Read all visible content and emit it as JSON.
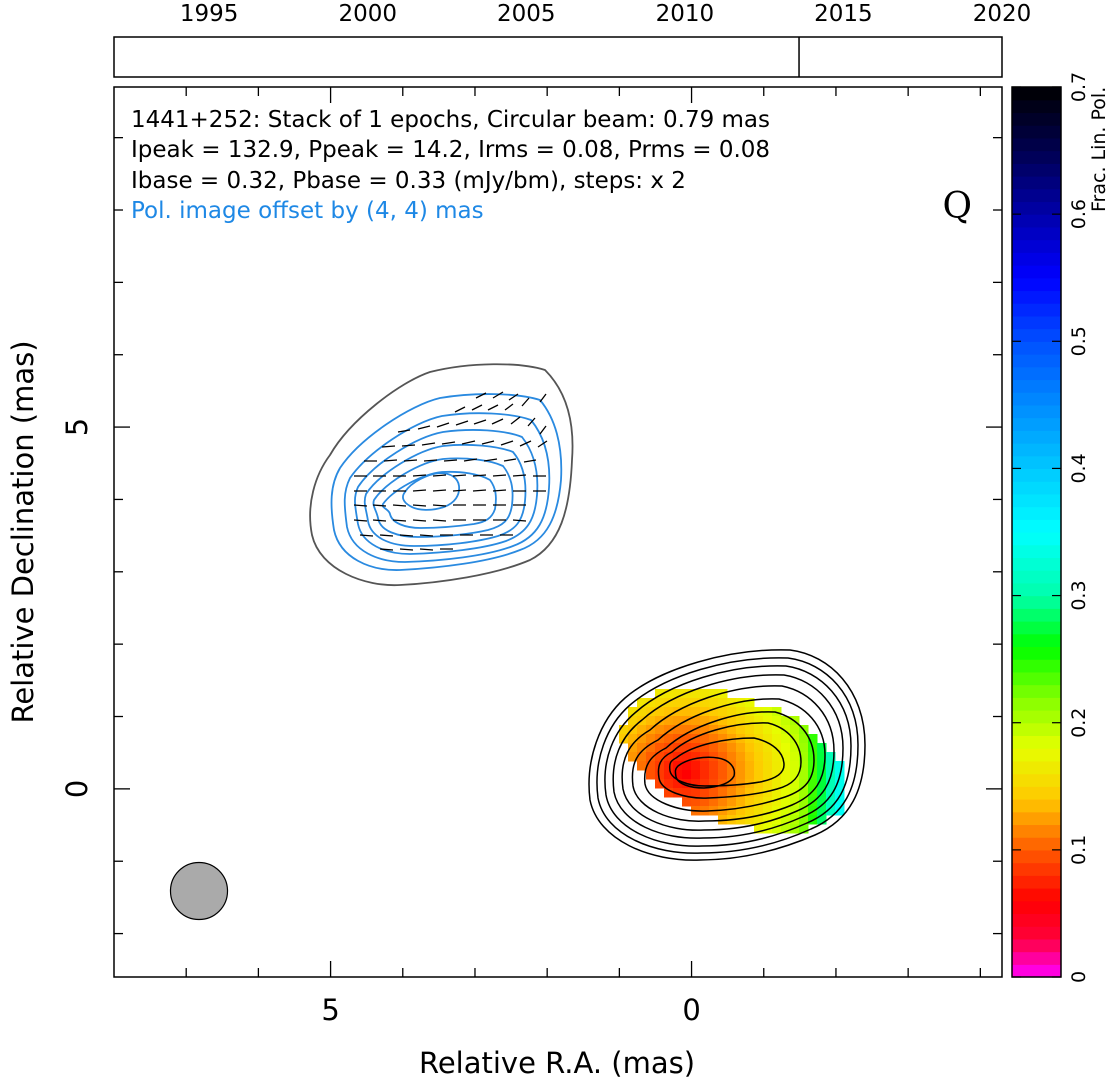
{
  "chart_data": [
    {
      "type": "timeline",
      "tick_labels": [
        "1995",
        "2000",
        "2005",
        "2010",
        "2015",
        "2020"
      ],
      "xlim": [
        1992,
        2020
      ],
      "epochs": [
        2013.6
      ]
    },
    {
      "type": "image",
      "xlabel": "Relative R.A. (mas)",
      "ylabel": "Relative Declination (mas)",
      "xlim": [
        8,
        -4.3
      ],
      "ylim": [
        -2.6,
        9.7
      ],
      "x_ticks": [
        5,
        0
      ],
      "y_ticks": [
        5,
        0
      ],
      "annotations": [
        "1441+252: Stack of 1 epochs, Circular beam: 0.79 mas",
        "Ipeak = 132.9, Ppeak = 14.2, Irms = 0.08, Prms = 0.08",
        "Ibase = 0.32, Pbase = 0.33 (mJy/bm), steps: x 2"
      ],
      "offset_note": "Pol. image offset by (4, 4) mas",
      "band": "Q",
      "beam_diameter_mas": 0.79,
      "offset_mas": [
        4,
        4
      ]
    },
    {
      "type": "colorbar",
      "label": "Frac. Lin. Pol.",
      "range": [
        0,
        0.7
      ],
      "tick_labels": [
        "0",
        "0.1",
        "0.2",
        "0.3",
        "0.4",
        "0.5",
        "0.6",
        "0.7"
      ]
    }
  ],
  "colors": {
    "total_intensity_contour": "#000000",
    "polarization_contour": "#2a8ae0",
    "outer_pol_contour": "#555555",
    "beam_fill": "#aaaaaa",
    "offset_note": "#1e88e5"
  }
}
